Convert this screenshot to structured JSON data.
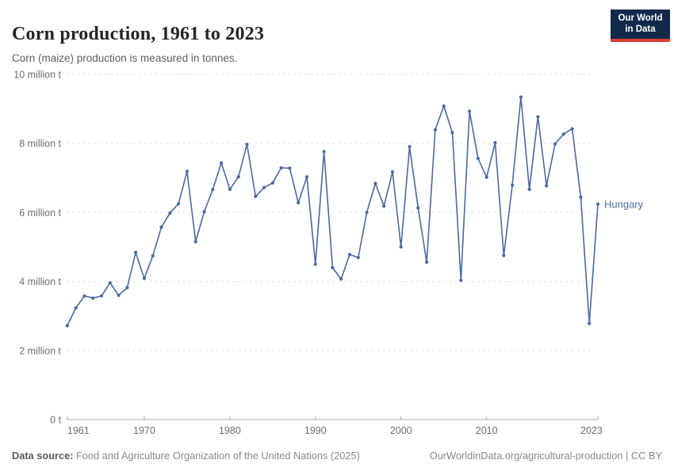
{
  "header": {
    "title": "Corn production, 1961 to 2023",
    "subtitle": "Corn (maize) production is measured in tonnes.",
    "logo": {
      "line1": "Our World",
      "line2": "in Data",
      "bg_color": "#12294b",
      "accent_color": "#dc3c31"
    }
  },
  "chart_data": {
    "type": "line",
    "title": "Corn production, 1961 to 2023",
    "xlabel": "",
    "ylabel": "",
    "unit": "million tonnes",
    "xlim": [
      1961,
      2023
    ],
    "ylim": [
      0,
      10
    ],
    "grid": "horizontal-dashed",
    "legend_position": "end-of-line-label",
    "colors": {
      "grid": "#dcdcdc",
      "axis": "#a8a8a8",
      "tick_text": "#6e6e6e",
      "end_label": "#4c6a9c"
    },
    "y_ticks": [
      {
        "value": 0,
        "label": "0 t"
      },
      {
        "value": 2,
        "label": "2 million t"
      },
      {
        "value": 4,
        "label": "4 million t"
      },
      {
        "value": 6,
        "label": "6 million t"
      },
      {
        "value": 8,
        "label": "8 million t"
      },
      {
        "value": 10,
        "label": "10 million t"
      }
    ],
    "x_ticks": [
      {
        "year": 1961,
        "label": "1961",
        "label_dx": 14
      },
      {
        "year": 1970,
        "label": "1970",
        "label_dx": 0
      },
      {
        "year": 1980,
        "label": "1980",
        "label_dx": 0
      },
      {
        "year": 1990,
        "label": "1990",
        "label_dx": 0
      },
      {
        "year": 2000,
        "label": "2000",
        "label_dx": 0
      },
      {
        "year": 2010,
        "label": "2010",
        "label_dx": 0
      },
      {
        "year": 2023,
        "label": "2023",
        "label_dx": -8
      }
    ],
    "series": [
      {
        "name": "Hungary",
        "color": "#4a69a0",
        "x": [
          1961,
          1962,
          1963,
          1964,
          1965,
          1966,
          1967,
          1968,
          1969,
          1970,
          1971,
          1972,
          1973,
          1974,
          1975,
          1976,
          1977,
          1978,
          1979,
          1980,
          1981,
          1982,
          1983,
          1984,
          1985,
          1986,
          1987,
          1988,
          1989,
          1990,
          1991,
          1992,
          1993,
          1994,
          1995,
          1996,
          1997,
          1998,
          1999,
          2000,
          2001,
          2002,
          2003,
          2004,
          2005,
          2006,
          2007,
          2008,
          2009,
          2010,
          2011,
          2012,
          2013,
          2014,
          2015,
          2016,
          2017,
          2018,
          2019,
          2020,
          2021,
          2022,
          2023
        ],
        "values": [
          2.72,
          3.23,
          3.58,
          3.52,
          3.58,
          3.96,
          3.6,
          3.82,
          4.84,
          4.09,
          4.74,
          5.57,
          5.98,
          6.25,
          7.19,
          5.15,
          6.02,
          6.66,
          7.43,
          6.67,
          7.03,
          7.97,
          6.46,
          6.72,
          6.85,
          7.29,
          7.28,
          6.28,
          7.03,
          4.5,
          7.76,
          4.4,
          4.07,
          4.78,
          4.69,
          6.0,
          6.84,
          6.18,
          7.17,
          5.0,
          7.9,
          6.13,
          4.56,
          8.39,
          9.08,
          8.31,
          4.03,
          8.93,
          7.56,
          7.02,
          8.02,
          4.75,
          6.79,
          9.34,
          6.67,
          8.77,
          6.77,
          7.98,
          8.27,
          8.42,
          6.44,
          2.78,
          6.24
        ]
      }
    ]
  },
  "footer": {
    "source_label": "Data source:",
    "source_text": " Food and Agriculture Organization of the United Nations (2025)",
    "link_text": "OurWorldinData.org/agricultural-production | CC BY"
  }
}
